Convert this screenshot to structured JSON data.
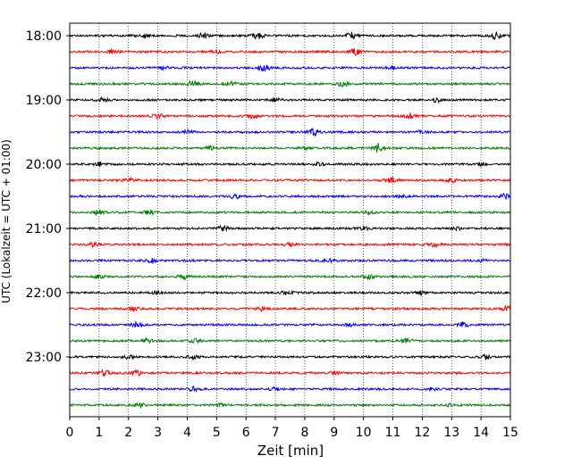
{
  "chart_data": {
    "type": "line",
    "title": "",
    "xlabel": "Zeit  [min]",
    "ylabel": "UTC (Lokalzeit = UTC + 01:00)",
    "xlim": [
      0,
      15
    ],
    "x_ticks": [
      "0",
      "1",
      "2",
      "3",
      "4",
      "5",
      "6",
      "7",
      "8",
      "9",
      "10",
      "11",
      "12",
      "13",
      "14",
      "15"
    ],
    "y_tick_labels": [
      "18:00",
      "19:00",
      "20:00",
      "21:00",
      "22:00",
      "23:00"
    ],
    "trace_colors": [
      "#000000",
      "#ff0000",
      "#0000ff",
      "#008000"
    ],
    "traces": [
      {
        "start": "18:00",
        "color": "#000000",
        "bursts": [
          [
            2.5,
            0.5
          ],
          [
            4.5,
            0.6
          ],
          [
            6.4,
            0.6
          ],
          [
            9.6,
            0.7
          ],
          [
            14.5,
            0.6
          ]
        ]
      },
      {
        "start": "18:15",
        "color": "#ff0000",
        "bursts": [
          [
            1.5,
            0.6
          ],
          [
            9.7,
            0.7
          ],
          [
            5.0,
            0.3
          ]
        ]
      },
      {
        "start": "18:30",
        "color": "#0000ff",
        "bursts": [
          [
            6.6,
            0.7
          ],
          [
            3.2,
            0.3
          ],
          [
            11.0,
            0.3
          ]
        ]
      },
      {
        "start": "18:45",
        "color": "#008000",
        "bursts": [
          [
            4.2,
            0.6
          ],
          [
            9.3,
            0.5
          ],
          [
            5.5,
            0.4
          ]
        ]
      },
      {
        "start": "19:00",
        "color": "#000000",
        "bursts": [
          [
            1.1,
            0.4
          ],
          [
            7.0,
            0.4
          ],
          [
            12.5,
            0.4
          ]
        ]
      },
      {
        "start": "19:15",
        "color": "#ff0000",
        "bursts": [
          [
            3.0,
            0.5
          ],
          [
            6.2,
            0.4
          ],
          [
            11.6,
            0.4
          ]
        ]
      },
      {
        "start": "19:30",
        "color": "#0000ff",
        "bursts": [
          [
            8.3,
            0.7
          ],
          [
            4.0,
            0.4
          ],
          [
            12.0,
            0.3
          ]
        ]
      },
      {
        "start": "19:45",
        "color": "#008000",
        "bursts": [
          [
            10.5,
            1.0
          ],
          [
            4.8,
            0.4
          ],
          [
            8.0,
            0.4
          ]
        ]
      },
      {
        "start": "20:00",
        "color": "#000000",
        "bursts": [
          [
            1.0,
            0.4
          ],
          [
            8.5,
            0.4
          ],
          [
            14.0,
            0.3
          ]
        ]
      },
      {
        "start": "20:15",
        "color": "#ff0000",
        "bursts": [
          [
            10.9,
            0.6
          ],
          [
            2.0,
            0.4
          ],
          [
            13.0,
            0.5
          ]
        ]
      },
      {
        "start": "20:30",
        "color": "#0000ff",
        "bursts": [
          [
            5.6,
            0.4
          ],
          [
            14.8,
            0.5
          ],
          [
            11.3,
            0.3
          ]
        ]
      },
      {
        "start": "20:45",
        "color": "#008000",
        "bursts": [
          [
            1.0,
            0.5
          ],
          [
            2.7,
            0.5
          ],
          [
            10.2,
            0.4
          ]
        ]
      },
      {
        "start": "21:00",
        "color": "#000000",
        "bursts": [
          [
            5.2,
            0.5
          ],
          [
            10.0,
            0.4
          ],
          [
            13.2,
            0.3
          ]
        ]
      },
      {
        "start": "21:15",
        "color": "#ff0000",
        "bursts": [
          [
            0.8,
            0.4
          ],
          [
            7.5,
            0.4
          ],
          [
            12.4,
            0.4
          ]
        ]
      },
      {
        "start": "21:30",
        "color": "#0000ff",
        "bursts": [
          [
            2.8,
            0.4
          ],
          [
            8.8,
            0.3
          ],
          [
            14.0,
            0.3
          ]
        ]
      },
      {
        "start": "21:45",
        "color": "#008000",
        "bursts": [
          [
            3.9,
            0.6
          ],
          [
            10.2,
            0.5
          ],
          [
            1.0,
            0.3
          ]
        ]
      },
      {
        "start": "22:00",
        "color": "#000000",
        "bursts": [
          [
            7.4,
            0.4
          ],
          [
            12.0,
            0.4
          ],
          [
            3.0,
            0.3
          ]
        ]
      },
      {
        "start": "22:15",
        "color": "#ff0000",
        "bursts": [
          [
            14.9,
            0.5
          ],
          [
            6.5,
            0.4
          ],
          [
            2.2,
            0.3
          ]
        ]
      },
      {
        "start": "22:30",
        "color": "#0000ff",
        "bursts": [
          [
            2.3,
            0.5
          ],
          [
            13.4,
            0.5
          ],
          [
            9.5,
            0.3
          ]
        ]
      },
      {
        "start": "22:45",
        "color": "#008000",
        "bursts": [
          [
            2.6,
            0.5
          ],
          [
            4.3,
            0.4
          ],
          [
            11.5,
            0.4
          ]
        ]
      },
      {
        "start": "23:00",
        "color": "#000000",
        "bursts": [
          [
            2.0,
            0.4
          ],
          [
            4.2,
            0.4
          ],
          [
            14.2,
            0.4
          ]
        ]
      },
      {
        "start": "23:15",
        "color": "#ff0000",
        "bursts": [
          [
            1.2,
            0.5
          ],
          [
            2.3,
            0.5
          ],
          [
            9.0,
            0.3
          ]
        ]
      },
      {
        "start": "23:30",
        "color": "#0000ff",
        "bursts": [
          [
            4.2,
            0.4
          ],
          [
            7.0,
            0.3
          ],
          [
            12.3,
            0.3
          ]
        ]
      },
      {
        "start": "23:45",
        "color": "#008000",
        "bursts": [
          [
            2.4,
            0.4
          ],
          [
            5.1,
            0.3
          ],
          [
            13.0,
            0.3
          ]
        ]
      }
    ]
  }
}
